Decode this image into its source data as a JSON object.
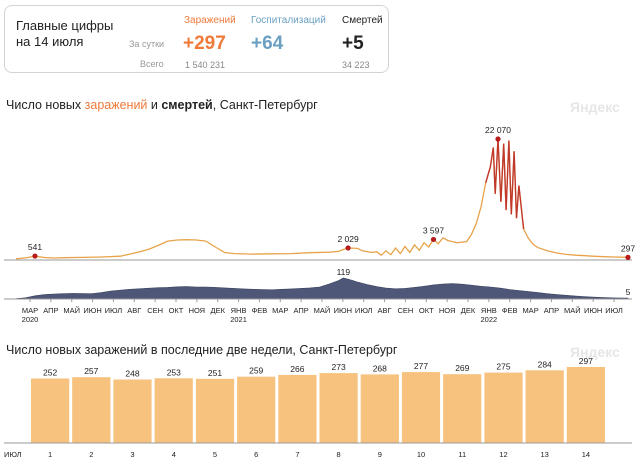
{
  "summary": {
    "title_line1": "Главные цифры",
    "title_line2": "на 14 июля",
    "per_day_label": "За сутки",
    "total_label": "Всего",
    "infections": {
      "label": "Заражений",
      "today": "+297",
      "total": "1 540 231",
      "color": "#f07a3a"
    },
    "hospitalizations": {
      "label": "Госпитализаций",
      "today": "+64",
      "color": "#6a9fc2"
    },
    "deaths": {
      "label": "Смертей",
      "today": "+5",
      "total": "34 223",
      "color": "#222222"
    }
  },
  "chart1": {
    "title_prefix": "Число новых ",
    "title_infections": "заражений",
    "title_mid": " и ",
    "title_deaths": "смертей",
    "title_suffix": ", Санкт-Петербург",
    "brand": "Яндекс"
  },
  "chart2": {
    "title": "Число новых заражений в последние две недели, Санкт-Петербург",
    "brand": "Яндекс"
  },
  "chart_data": [
    {
      "type": "line",
      "series": [
        {
          "name": "заражений",
          "color": "#e8a34a",
          "points": [
            [
              0,
              40
            ],
            [
              2,
              210
            ],
            [
              4,
              541
            ],
            [
              6,
              280
            ],
            [
              8,
              180
            ],
            [
              10,
              230
            ],
            [
              14,
              300
            ],
            [
              18,
              360
            ],
            [
              22,
              520
            ],
            [
              24,
              900
            ],
            [
              26,
              1300
            ],
            [
              28,
              1800
            ],
            [
              30,
              2500
            ],
            [
              32,
              3300
            ],
            [
              34,
              3500
            ],
            [
              36,
              3550
            ],
            [
              38,
              3500
            ],
            [
              40,
              3300
            ],
            [
              42,
              2200
            ],
            [
              44,
              1200
            ],
            [
              46,
              1000
            ],
            [
              50,
              900
            ],
            [
              54,
              950
            ],
            [
              58,
              1000
            ],
            [
              62,
              1150
            ],
            [
              66,
              1250
            ],
            [
              68,
              1400
            ],
            [
              69,
              1750
            ],
            [
              70,
              2029
            ],
            [
              72,
              1950
            ],
            [
              73,
              1500
            ],
            [
              75,
              1200
            ],
            [
              76,
              1350
            ],
            [
              77,
              700
            ],
            [
              78,
              1500
            ],
            [
              79,
              800
            ],
            [
              80,
              2000
            ],
            [
              81,
              1000
            ],
            [
              82,
              2300
            ],
            [
              83,
              1200
            ],
            [
              84,
              2600
            ],
            [
              85,
              1600
            ],
            [
              86,
              3000
            ],
            [
              87,
              2200
            ],
            [
              88,
              3597
            ],
            [
              89,
              2800
            ],
            [
              90,
              3900
            ],
            [
              91,
              3400
            ],
            [
              93,
              3000
            ],
            [
              95,
              3200
            ],
            [
              96,
              4500
            ],
            [
              97,
              6500
            ],
            [
              98,
              9500
            ],
            [
              99,
              14000
            ],
            [
              100,
              17000
            ],
            [
              100.6,
              20500
            ],
            [
              101,
              12000
            ],
            [
              101.6,
              22070
            ],
            [
              102.2,
              10500
            ],
            [
              102.8,
              21200
            ],
            [
              103.3,
              9000
            ],
            [
              103.9,
              21800
            ],
            [
              104.4,
              8200
            ],
            [
              105,
              19800
            ],
            [
              105.5,
              7500
            ],
            [
              106,
              13500
            ],
            [
              107,
              5500
            ],
            [
              108,
              3800
            ],
            [
              109,
              2700
            ],
            [
              110,
              2100
            ],
            [
              112,
              1500
            ],
            [
              114,
              1100
            ],
            [
              116,
              850
            ],
            [
              118,
              700
            ],
            [
              120,
              600
            ],
            [
              122,
              500
            ],
            [
              124,
              420
            ],
            [
              126,
              360
            ],
            [
              128,
              330
            ],
            [
              129,
              297
            ]
          ]
        }
      ],
      "annotations": [
        {
          "x": 4,
          "y": 541,
          "label": "541"
        },
        {
          "x": 70,
          "y": 2029,
          "label": "2 029"
        },
        {
          "x": 88,
          "y": 3597,
          "label": "3 597"
        },
        {
          "x": 101.6,
          "y": 22070,
          "label": "22 070"
        },
        {
          "x": 129,
          "y": 297,
          "label": "297"
        }
      ]
    },
    {
      "type": "area",
      "series": [
        {
          "name": "смертей",
          "color": "#4e5777",
          "points": [
            [
              0,
              2
            ],
            [
              2,
              7
            ],
            [
              4,
              18
            ],
            [
              6,
              25
            ],
            [
              8,
              28
            ],
            [
              10,
              30
            ],
            [
              12,
              32
            ],
            [
              14,
              31
            ],
            [
              16,
              30
            ],
            [
              18,
              36
            ],
            [
              20,
              45
            ],
            [
              22,
              50
            ],
            [
              24,
              55
            ],
            [
              26,
              58
            ],
            [
              28,
              61
            ],
            [
              30,
              64
            ],
            [
              32,
              66
            ],
            [
              34,
              69
            ],
            [
              36,
              70
            ],
            [
              38,
              68
            ],
            [
              40,
              68
            ],
            [
              42,
              66
            ],
            [
              44,
              63
            ],
            [
              46,
              60
            ],
            [
              48,
              57
            ],
            [
              50,
              55
            ],
            [
              52,
              53
            ],
            [
              54,
              52
            ],
            [
              56,
              55
            ],
            [
              58,
              57
            ],
            [
              60,
              60
            ],
            [
              62,
              63
            ],
            [
              64,
              68
            ],
            [
              66,
              85
            ],
            [
              68,
              105
            ],
            [
              69,
              119
            ],
            [
              70,
              112
            ],
            [
              71,
              105
            ],
            [
              72,
              96
            ],
            [
              74,
              82
            ],
            [
              76,
              70
            ],
            [
              78,
              62
            ],
            [
              80,
              58
            ],
            [
              82,
              60
            ],
            [
              84,
              66
            ],
            [
              86,
              72
            ],
            [
              88,
              80
            ],
            [
              90,
              85
            ],
            [
              92,
              88
            ],
            [
              94,
              84
            ],
            [
              96,
              78
            ],
            [
              98,
              72
            ],
            [
              100,
              68
            ],
            [
              102,
              62
            ],
            [
              104,
              54
            ],
            [
              106,
              48
            ],
            [
              108,
              42
            ],
            [
              110,
              36
            ],
            [
              112,
              30
            ],
            [
              114,
              25
            ],
            [
              116,
              21
            ],
            [
              118,
              17
            ],
            [
              120,
              13
            ],
            [
              122,
              10
            ],
            [
              124,
              8
            ],
            [
              126,
              6
            ],
            [
              128,
              5
            ],
            [
              129,
              5
            ]
          ]
        }
      ],
      "annotations": [
        {
          "x": 69,
          "y": 119,
          "label": "119"
        },
        {
          "x": 129,
          "y": 5,
          "label": "5"
        }
      ]
    },
    {
      "type": "bar",
      "title": "Число новых заражений в последние две недели, Санкт-Петербург",
      "categories": [
        "1",
        "2",
        "3",
        "4",
        "5",
        "6",
        "7",
        "8",
        "9",
        "10",
        "11",
        "12",
        "13",
        "14"
      ],
      "values": [
        252,
        257,
        248,
        253,
        251,
        259,
        266,
        273,
        268,
        277,
        269,
        275,
        284,
        297
      ],
      "weekend_categories": [
        "2",
        "3",
        "9",
        "10"
      ],
      "ylim": [
        0,
        300
      ],
      "bar_color": "#f6c27d",
      "xlabel": "ИЮЛ"
    }
  ],
  "timeline_labels": [
    {
      "text": "МАР",
      "year": "2020"
    },
    {
      "text": "АПР"
    },
    {
      "text": "МАЙ"
    },
    {
      "text": "ИЮН"
    },
    {
      "text": "ИЮЛ"
    },
    {
      "text": "АВГ"
    },
    {
      "text": "СЕН"
    },
    {
      "text": "ОКТ"
    },
    {
      "text": "НОЯ"
    },
    {
      "text": "ДЕК"
    },
    {
      "text": "ЯНВ",
      "year": "2021"
    },
    {
      "text": "ФЕВ"
    },
    {
      "text": "МАР"
    },
    {
      "text": "АПР"
    },
    {
      "text": "МАЙ"
    },
    {
      "text": "ИЮН"
    },
    {
      "text": "ИЮЛ"
    },
    {
      "text": "АВГ"
    },
    {
      "text": "СЕН"
    },
    {
      "text": "ОКТ"
    },
    {
      "text": "НОЯ"
    },
    {
      "text": "ДЕК"
    },
    {
      "text": "ЯНВ",
      "year": "2022"
    },
    {
      "text": "ФЕВ"
    },
    {
      "text": "МАР"
    },
    {
      "text": "АПР"
    },
    {
      "text": "МАЙ"
    },
    {
      "text": "ИЮН"
    },
    {
      "text": "ИЮЛ"
    }
  ]
}
